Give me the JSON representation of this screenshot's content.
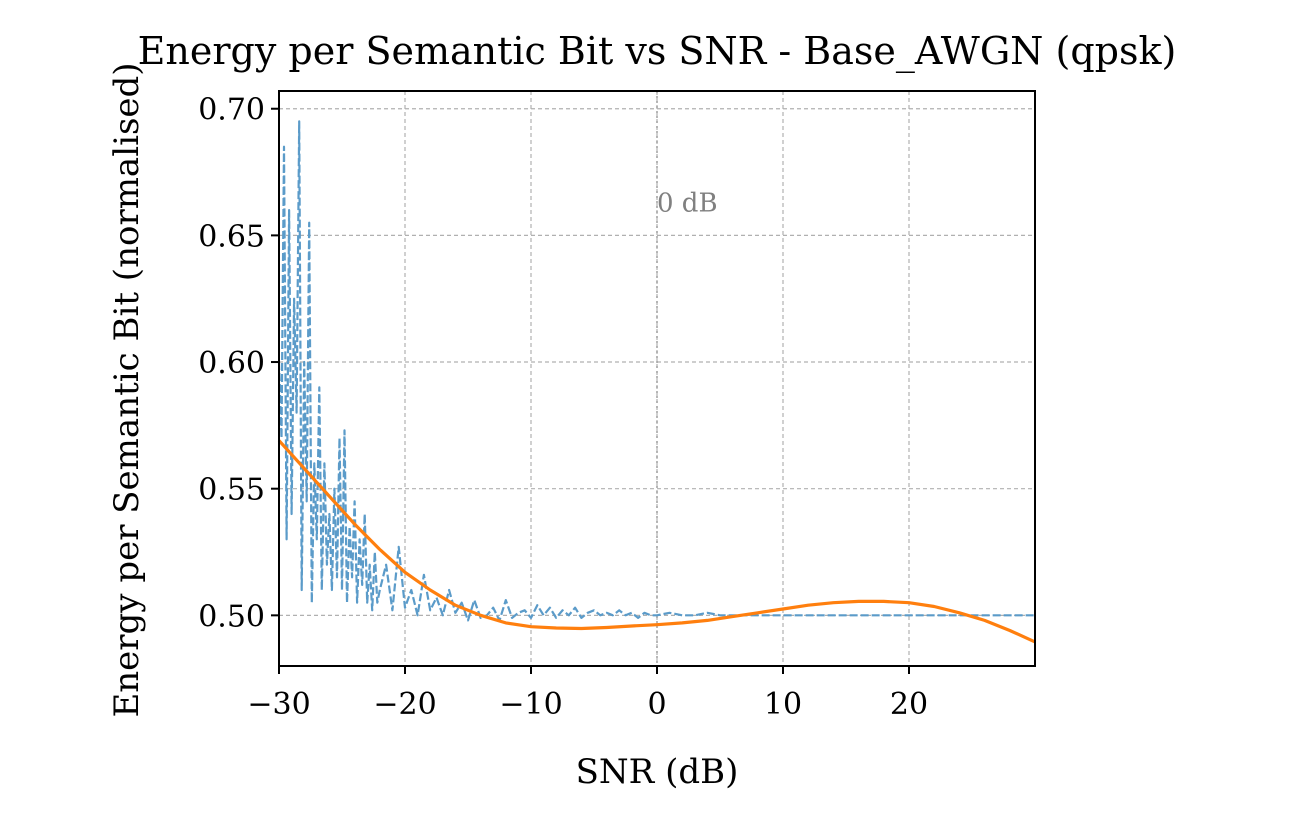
{
  "chart_data": {
    "type": "line",
    "title": "Energy per Semantic Bit vs SNR - Base_AWGN (qpsk)",
    "xlabel": "SNR (dB)",
    "ylabel": "Energy per Semantic Bit (normalised)",
    "xlim": [
      -30,
      30
    ],
    "ylim": [
      0.48,
      0.707
    ],
    "xticks": [
      -30,
      -20,
      -10,
      0,
      10,
      20
    ],
    "xtick_labels": [
      "−30",
      "−20",
      "−10",
      "0",
      "10",
      "20"
    ],
    "yticks": [
      0.5,
      0.55,
      0.6,
      0.65,
      0.7
    ],
    "ytick_labels": [
      "0.50",
      "0.55",
      "0.60",
      "0.65",
      "0.70"
    ],
    "grid": true,
    "legend": "none",
    "annotation": {
      "text": "0 dB",
      "x": 0,
      "y": 0.663
    },
    "vline": {
      "x": 0,
      "color": "#a0a0a0",
      "style": "dotted"
    },
    "series": [
      {
        "style": "dashed",
        "color": "#5b9bc9",
        "x": [
          -30,
          -29.8,
          -29.6,
          -29.4,
          -29.2,
          -29.0,
          -28.8,
          -28.6,
          -28.4,
          -28.2,
          -28.0,
          -27.8,
          -27.6,
          -27.4,
          -27.2,
          -27.0,
          -26.8,
          -26.6,
          -26.4,
          -26.2,
          -26.0,
          -25.8,
          -25.6,
          -25.4,
          -25.2,
          -25.0,
          -24.8,
          -24.6,
          -24.4,
          -24.2,
          -24.0,
          -23.8,
          -23.6,
          -23.4,
          -23.2,
          -23.0,
          -22.8,
          -22.6,
          -22.4,
          -22.2,
          -22.0,
          -21.5,
          -21.0,
          -20.5,
          -20.0,
          -19.5,
          -19.0,
          -18.5,
          -18.0,
          -17.5,
          -17.0,
          -16.5,
          -16.0,
          -15.5,
          -15.0,
          -14.5,
          -14.0,
          -13.5,
          -13.0,
          -12.5,
          -12.0,
          -11.5,
          -11.0,
          -10.5,
          -10.0,
          -9.5,
          -9.0,
          -8.5,
          -8.0,
          -7.5,
          -7.0,
          -6.5,
          -6.0,
          -5.5,
          -5.0,
          -4.5,
          -4.0,
          -3.5,
          -3.0,
          -2.5,
          -2.0,
          -1.5,
          -1.0,
          -0.5,
          0.0,
          1.0,
          2.0,
          3.0,
          4.0,
          5.0,
          6.0,
          8.0,
          10.0,
          12.0,
          14.0,
          16.0,
          18.0,
          20.0,
          22.0,
          24.0,
          26.0,
          28.0,
          30.0
        ],
        "y": [
          0.6,
          0.57,
          0.685,
          0.53,
          0.66,
          0.54,
          0.625,
          0.58,
          0.695,
          0.51,
          0.6,
          0.545,
          0.655,
          0.505,
          0.56,
          0.53,
          0.59,
          0.51,
          0.56,
          0.52,
          0.54,
          0.51,
          0.55,
          0.515,
          0.57,
          0.51,
          0.573,
          0.505,
          0.535,
          0.515,
          0.545,
          0.505,
          0.53,
          0.512,
          0.54,
          0.505,
          0.52,
          0.502,
          0.525,
          0.505,
          0.51,
          0.52,
          0.502,
          0.527,
          0.503,
          0.51,
          0.5,
          0.516,
          0.502,
          0.507,
          0.5,
          0.51,
          0.501,
          0.505,
          0.498,
          0.506,
          0.499,
          0.5,
          0.503,
          0.498,
          0.506,
          0.499,
          0.501,
          0.502,
          0.499,
          0.504,
          0.5,
          0.503,
          0.499,
          0.502,
          0.5,
          0.503,
          0.499,
          0.501,
          0.502,
          0.5,
          0.501,
          0.5,
          0.502,
          0.5,
          0.501,
          0.499,
          0.501,
          0.5,
          0.5,
          0.501,
          0.5,
          0.5,
          0.501,
          0.5,
          0.5,
          0.5,
          0.5,
          0.5,
          0.5,
          0.5,
          0.5,
          0.5,
          0.5,
          0.5,
          0.5,
          0.5,
          0.5
        ]
      },
      {
        "style": "solid",
        "color": "#ff7f0e",
        "x": [
          -30,
          -28,
          -26,
          -24,
          -22,
          -20,
          -18,
          -16,
          -14,
          -12,
          -10,
          -8,
          -6,
          -4,
          -2,
          0,
          2,
          4,
          6,
          8,
          10,
          12,
          14,
          16,
          18,
          20,
          22,
          24,
          26,
          28,
          30
        ],
        "y": [
          0.569,
          0.558,
          0.547,
          0.536,
          0.526,
          0.517,
          0.51,
          0.504,
          0.5,
          0.497,
          0.4955,
          0.495,
          0.4948,
          0.4952,
          0.4958,
          0.4963,
          0.497,
          0.498,
          0.4995,
          0.501,
          0.5025,
          0.504,
          0.505,
          0.5055,
          0.5055,
          0.505,
          0.5035,
          0.501,
          0.498,
          0.494,
          0.4895
        ]
      }
    ]
  }
}
